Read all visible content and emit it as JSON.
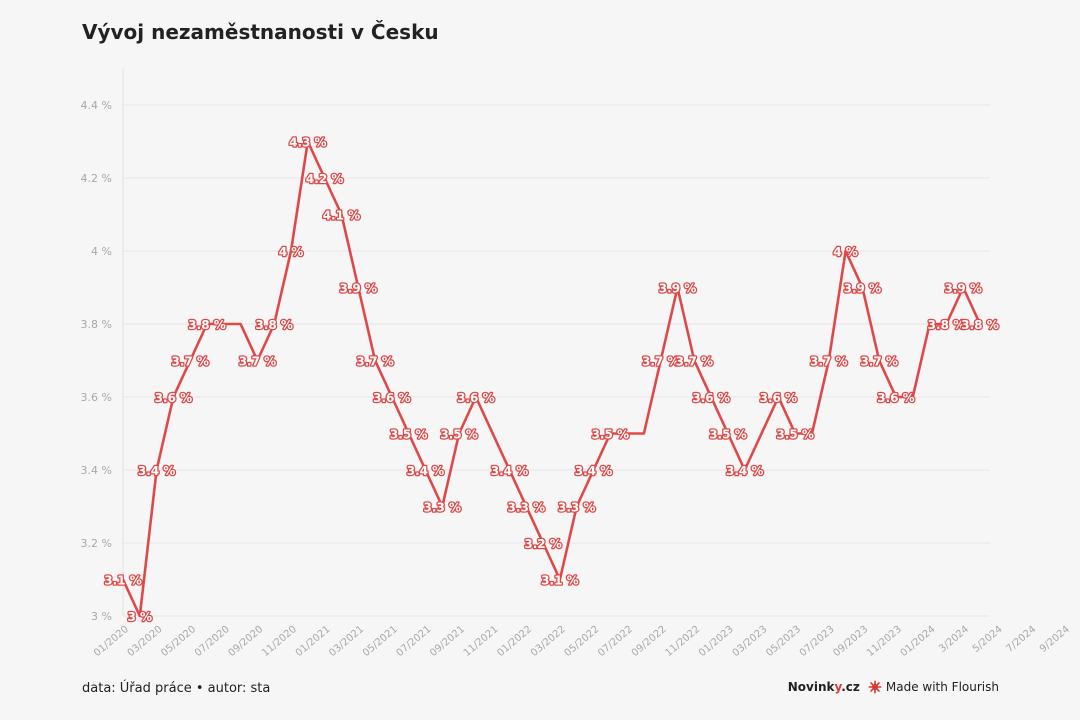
{
  "title": "Vývoj nezaměstnanosti v Česku",
  "footer": {
    "source": "data: Úřad práce • autor: sta",
    "brand": "Novinky.cz",
    "made_with": "Made with Flourish"
  },
  "colors": {
    "line": "#e04848",
    "label_fill": "#ffffff",
    "grid": "#e6e6e6",
    "axis_text": "#a8a8a8"
  },
  "chart_data": {
    "type": "line",
    "title": "Vývoj nezaměstnanosti v Česku",
    "xlabel": "",
    "ylabel": "",
    "ylim": [
      3.0,
      4.4
    ],
    "y_ticks": [
      "3 %",
      "3.2 %",
      "3.4 %",
      "3.6 %",
      "3.8 %",
      "4 %",
      "4.2 %",
      "4.4 %"
    ],
    "grid": true,
    "legend": "none",
    "x_tick_labels": [
      "01/2020",
      "03/2020",
      "05/2020",
      "07/2020",
      "09/2020",
      "11/2020",
      "01/2021",
      "03/2021",
      "05/2021",
      "07/2021",
      "09/2021",
      "11/2021",
      "01/2022",
      "03/2022",
      "05/2022",
      "07/2022",
      "09/2022",
      "11/2022",
      "01/2023",
      "03/2023",
      "05/2023",
      "07/2023",
      "09/2023",
      "11/2023",
      "01/2024",
      "3/2024",
      "5/2024",
      "7/2024",
      "9/2024"
    ],
    "series": [
      {
        "values": [
          3.1,
          3.0,
          3.4,
          3.6,
          3.7,
          3.8,
          3.8,
          3.8,
          3.7,
          3.8,
          4.0,
          4.3,
          4.2,
          4.1,
          3.9,
          3.7,
          3.6,
          3.5,
          3.4,
          3.3,
          3.5,
          3.6,
          3.5,
          3.4,
          3.3,
          3.2,
          3.1,
          3.3,
          3.4,
          3.5,
          3.5,
          3.5,
          3.7,
          3.9,
          3.7,
          3.6,
          3.5,
          3.4,
          3.5,
          3.6,
          3.5,
          3.5,
          3.7,
          4.0,
          3.9,
          3.7,
          3.6,
          3.6,
          3.8,
          3.8,
          3.9,
          3.8
        ],
        "point_labels": [
          "3.1 %",
          "3 %",
          "3.4 %",
          "3.6 %",
          "3.7 %",
          "3.8 %",
          "",
          "",
          "3.7 %",
          "3.8 %",
          "4 %",
          "4.3 %",
          "4.2 %",
          "4.1 %",
          "3.9 %",
          "3.7 %",
          "3.6 %",
          "3.5 %",
          "3.4 %",
          "3.3 %",
          "3.5 %",
          "3.6 %",
          "",
          "3.4 %",
          "3.3 %",
          "3.2 %",
          "3.1 %",
          "3.3 %",
          "3.4 %",
          "3.5 %",
          "",
          "",
          "3.7 %",
          "3.9 %",
          "3.7 %",
          "3.6 %",
          "3.5 %",
          "3.4 %",
          "",
          "3.6 %",
          "3.5 %",
          "",
          "3.7 %",
          "4 %",
          "3.9 %",
          "3.7 %",
          "3.6 %",
          "",
          "",
          "3.8 %",
          "3.9 %",
          "3.8 %"
        ]
      }
    ]
  }
}
